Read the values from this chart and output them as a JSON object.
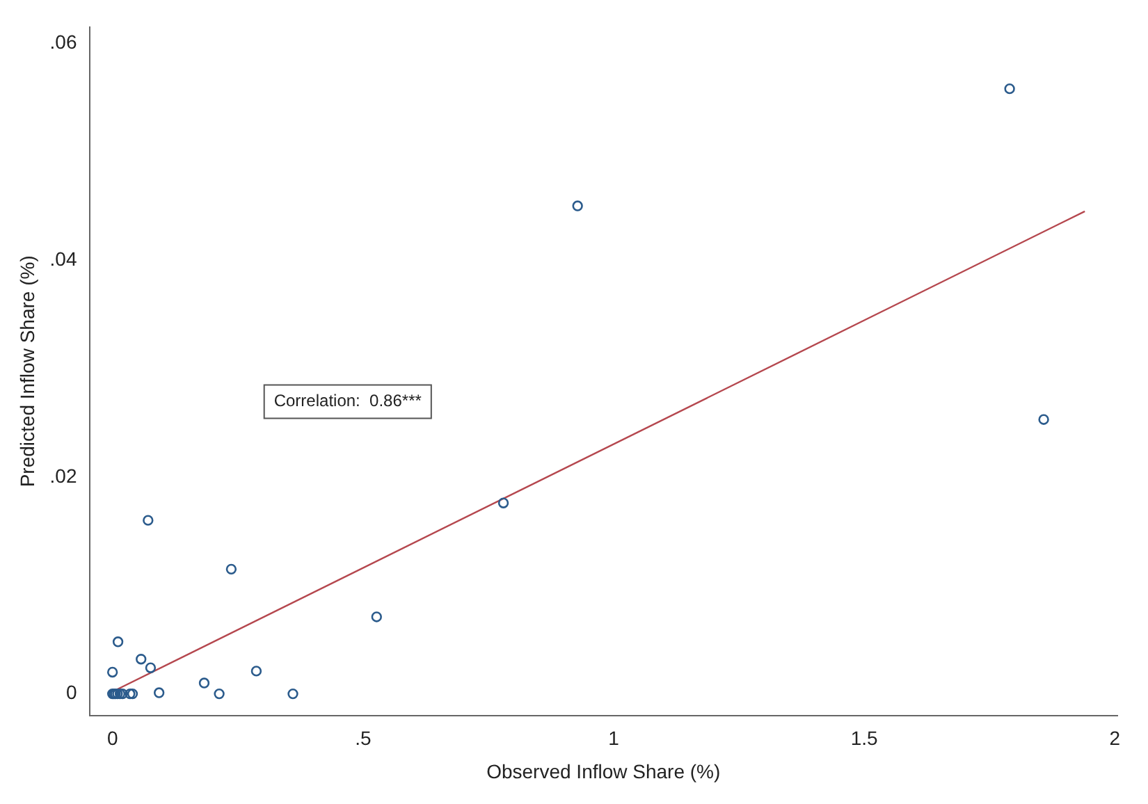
{
  "chart_data": {
    "type": "scatter",
    "xlabel": "Observed Inflow Share (%)",
    "ylabel": "Predicted Inflow Share (%)",
    "annotations": [
      "Correlation:  0.86***"
    ],
    "series": [
      {
        "color": "#2b5b8c",
        "marker": "circle",
        "x": [
          0,
          0.003,
          0.006,
          0.01,
          0.015,
          0.02,
          0.035,
          0.04,
          0.093,
          0.213,
          0.36,
          0,
          0.183,
          0.287,
          0.076,
          0.057,
          0.011,
          0.237,
          0.071,
          0.527,
          0.78,
          0.928,
          1.79,
          1.858
        ],
        "values": [
          0,
          0,
          0,
          0,
          0,
          0,
          0,
          0,
          0.0001,
          0,
          0,
          0.002,
          0.001,
          0.0021,
          0.0024,
          0.0032,
          0.0048,
          0.0115,
          0.016,
          0.0071,
          0.0176,
          0.045,
          0.0558,
          0.0253
        ]
      },
      {
        "type": "line",
        "color": "#b5474e",
        "marker": "none",
        "line_style": "solid",
        "x": [
          0,
          1.94
        ],
        "values": [
          0.0002,
          0.0445
        ]
      }
    ],
    "xlim": [
      -0.046,
      2.005
    ],
    "ylim": [
      -0.002,
      0.0615
    ],
    "xticks": [
      0,
      {
        "value": 0.5,
        "label": ".5"
      },
      1,
      {
        "value": 1.5,
        "label": "1.5"
      },
      2
    ],
    "yticks": [
      0,
      {
        "value": 0.02,
        "label": ".02"
      },
      {
        "value": 0.04,
        "label": ".04"
      },
      {
        "value": 0.06,
        "label": ".06"
      }
    ],
    "grid": false,
    "legend": false
  }
}
